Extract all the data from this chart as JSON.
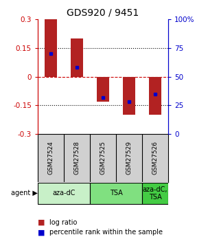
{
  "title": "GDS920 / 9451",
  "samples": [
    "GSM27524",
    "GSM27528",
    "GSM27525",
    "GSM27529",
    "GSM27526"
  ],
  "log_ratios": [
    0.3,
    0.2,
    -0.13,
    -0.2,
    -0.2
  ],
  "percentile_ranks": [
    0.7,
    0.58,
    0.32,
    0.28,
    0.35
  ],
  "ylim": [
    -0.3,
    0.3
  ],
  "yticks_left": [
    -0.3,
    -0.15,
    0,
    0.15,
    0.3
  ],
  "yticks_right_vals": [
    0,
    25,
    50,
    75,
    100
  ],
  "hlines_dotted": [
    -0.15,
    0.15
  ],
  "hline_dashed": 0,
  "bar_color": "#b22222",
  "dot_color": "#0000cc",
  "agent_groups": [
    {
      "label": "aza-dC",
      "span": [
        0,
        2
      ],
      "color": "#c8f0c8"
    },
    {
      "label": "TSA",
      "span": [
        2,
        4
      ],
      "color": "#80e080"
    },
    {
      "label": "aza-dC,\nTSA",
      "span": [
        4,
        5
      ],
      "color": "#44cc44"
    }
  ],
  "sample_bg_color": "#d0d0d0",
  "bar_width": 0.45,
  "title_fontsize": 10,
  "tick_fontsize": 7.5,
  "sample_fontsize": 6.5,
  "legend_fontsize": 7,
  "agent_fontsize": 7
}
